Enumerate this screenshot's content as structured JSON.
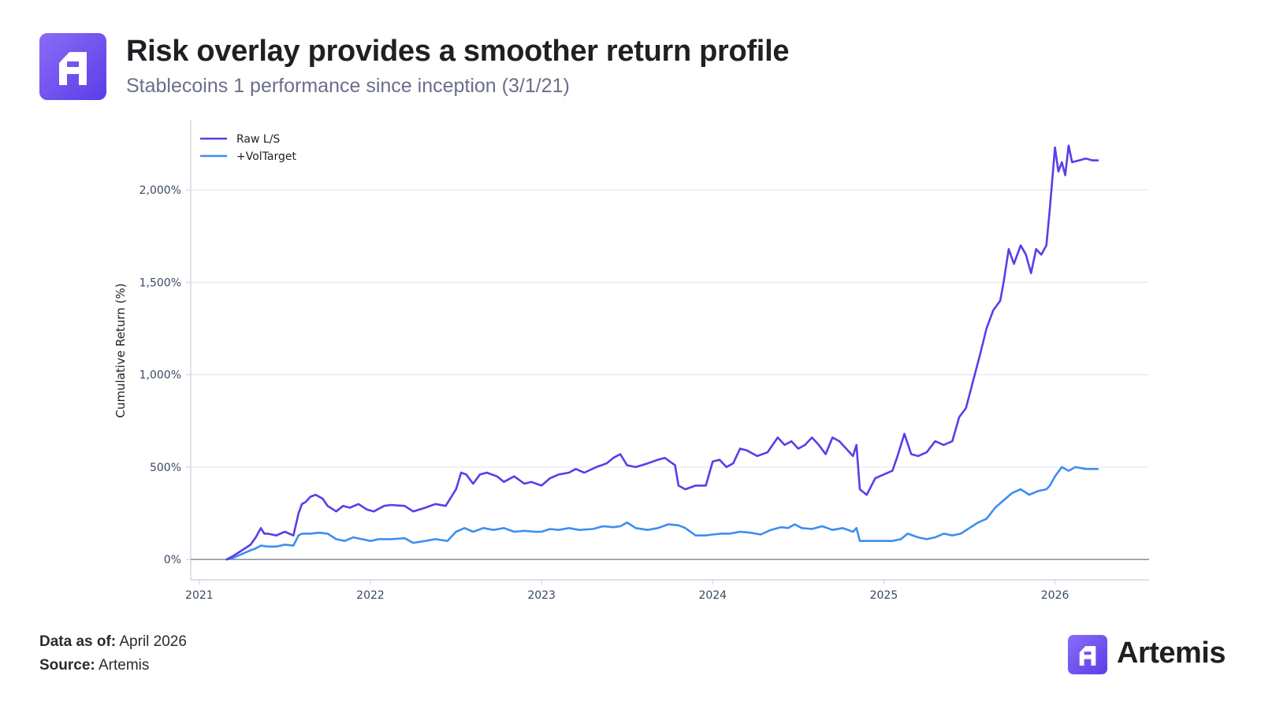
{
  "header": {
    "logo_icon": "artemis-logo-icon",
    "title": "Risk overlay provides a smoother return profile",
    "subtitle": "Stablecoins 1 performance since inception (3/1/21)"
  },
  "footer": {
    "data_as_of_label": "Data as of:",
    "data_as_of_value": "April 2026",
    "source_label": "Source:",
    "source_value": "Artemis"
  },
  "brand": {
    "icon": "artemis-logo-icon",
    "name": "Artemis"
  },
  "colors": {
    "raw": "#5b3de8",
    "voltarget": "#3d8ef0",
    "grid": "#e3e8f0",
    "axis": "#c8d2e0",
    "zero_line": "#7a8394",
    "tick_text": "#3a4a63"
  },
  "chart_data": {
    "type": "line",
    "title": "",
    "xlabel": "",
    "ylabel": "Cumulative Return (%)",
    "xlim": [
      2020.95,
      2026.55
    ],
    "ylim": [
      -110,
      2380
    ],
    "xticks": [
      2021,
      2022,
      2023,
      2024,
      2025,
      2026
    ],
    "xtick_labels": [
      "2021",
      "2022",
      "2023",
      "2024",
      "2025",
      "2026"
    ],
    "yticks": [
      0,
      500,
      1000,
      1500,
      2000
    ],
    "ytick_labels": [
      "0%",
      "500%",
      "1,000%",
      "1,500%",
      "2,000%"
    ],
    "grid": "horizontal",
    "legend_position": "top-left",
    "series": [
      {
        "name": "Raw L/S",
        "x": [
          2021.16,
          2021.2,
          2021.25,
          2021.3,
          2021.33,
          2021.36,
          2021.38,
          2021.4,
          2021.45,
          2021.5,
          2021.55,
          2021.58,
          2021.6,
          2021.62,
          2021.65,
          2021.68,
          2021.72,
          2021.75,
          2021.8,
          2021.84,
          2021.88,
          2021.93,
          2021.98,
          2022.02,
          2022.08,
          2022.12,
          2022.2,
          2022.25,
          2022.32,
          2022.38,
          2022.44,
          2022.5,
          2022.53,
          2022.56,
          2022.6,
          2022.64,
          2022.68,
          2022.74,
          2022.78,
          2022.84,
          2022.9,
          2022.94,
          2023.0,
          2023.05,
          2023.1,
          2023.16,
          2023.2,
          2023.25,
          2023.32,
          2023.38,
          2023.42,
          2023.46,
          2023.5,
          2023.55,
          2023.62,
          2023.68,
          2023.72,
          2023.78,
          2023.8,
          2023.84,
          2023.9,
          2023.96,
          2024.0,
          2024.04,
          2024.08,
          2024.12,
          2024.16,
          2024.2,
          2024.26,
          2024.32,
          2024.38,
          2024.42,
          2024.46,
          2024.5,
          2024.54,
          2024.58,
          2024.62,
          2024.66,
          2024.7,
          2024.74,
          2024.78,
          2024.82,
          2024.84,
          2024.86,
          2024.9,
          2024.95,
          2025.0,
          2025.05,
          2025.08,
          2025.12,
          2025.16,
          2025.2,
          2025.25,
          2025.3,
          2025.35,
          2025.4,
          2025.44,
          2025.48,
          2025.52,
          2025.56,
          2025.6,
          2025.64,
          2025.68,
          2025.7,
          2025.73,
          2025.76,
          2025.8,
          2025.83,
          2025.86,
          2025.89,
          2025.92,
          2025.95,
          2025.97,
          2026.0,
          2026.02,
          2026.04,
          2026.06,
          2026.08,
          2026.1,
          2026.14,
          2026.18,
          2026.22,
          2026.25
        ],
        "values": [
          0,
          20,
          50,
          80,
          120,
          170,
          140,
          140,
          130,
          150,
          130,
          250,
          300,
          310,
          340,
          350,
          330,
          290,
          260,
          290,
          280,
          300,
          270,
          260,
          290,
          295,
          290,
          260,
          280,
          300,
          290,
          380,
          470,
          460,
          410,
          460,
          470,
          450,
          420,
          450,
          410,
          420,
          400,
          440,
          460,
          470,
          490,
          470,
          500,
          520,
          550,
          570,
          510,
          500,
          520,
          540,
          550,
          510,
          400,
          380,
          400,
          400,
          530,
          540,
          500,
          520,
          600,
          590,
          560,
          580,
          660,
          620,
          640,
          600,
          620,
          660,
          620,
          570,
          660,
          640,
          600,
          560,
          620,
          380,
          350,
          440,
          460,
          480,
          560,
          680,
          570,
          560,
          580,
          640,
          620,
          640,
          770,
          820,
          960,
          1100,
          1250,
          1350,
          1400,
          1500,
          1680,
          1600,
          1700,
          1650,
          1550,
          1680,
          1650,
          1700,
          1900,
          2230,
          2100,
          2150,
          2080,
          2240,
          2150,
          2160,
          2170,
          2160,
          2160
        ]
      },
      {
        "name": "+VolTarget",
        "x": [
          2021.16,
          2021.2,
          2021.25,
          2021.3,
          2021.33,
          2021.36,
          2021.4,
          2021.45,
          2021.5,
          2021.55,
          2021.58,
          2021.6,
          2021.65,
          2021.7,
          2021.75,
          2021.8,
          2021.85,
          2021.9,
          2021.95,
          2022.0,
          2022.05,
          2022.12,
          2022.2,
          2022.25,
          2022.32,
          2022.38,
          2022.45,
          2022.5,
          2022.55,
          2022.6,
          2022.66,
          2022.72,
          2022.78,
          2022.84,
          2022.9,
          2022.96,
          2023.0,
          2023.05,
          2023.1,
          2023.16,
          2023.22,
          2023.3,
          2023.36,
          2023.42,
          2023.46,
          2023.5,
          2023.55,
          2023.62,
          2023.68,
          2023.74,
          2023.8,
          2023.84,
          2023.9,
          2023.96,
          2024.0,
          2024.05,
          2024.1,
          2024.16,
          2024.22,
          2024.28,
          2024.34,
          2024.4,
          2024.44,
          2024.48,
          2024.52,
          2024.58,
          2024.64,
          2024.7,
          2024.76,
          2024.82,
          2024.84,
          2024.86,
          2024.9,
          2024.95,
          2025.0,
          2025.05,
          2025.1,
          2025.14,
          2025.2,
          2025.25,
          2025.3,
          2025.35,
          2025.4,
          2025.45,
          2025.5,
          2025.55,
          2025.6,
          2025.65,
          2025.7,
          2025.75,
          2025.8,
          2025.85,
          2025.9,
          2025.95,
          2025.97,
          2026.0,
          2026.04,
          2026.08,
          2026.12,
          2026.18,
          2026.22,
          2026.25
        ],
        "values": [
          0,
          10,
          30,
          50,
          60,
          75,
          70,
          70,
          80,
          75,
          130,
          140,
          140,
          145,
          140,
          110,
          100,
          120,
          110,
          100,
          110,
          110,
          115,
          90,
          100,
          110,
          100,
          150,
          170,
          150,
          170,
          160,
          170,
          150,
          155,
          150,
          150,
          165,
          160,
          170,
          160,
          165,
          180,
          175,
          180,
          200,
          170,
          160,
          170,
          190,
          185,
          170,
          130,
          130,
          135,
          140,
          140,
          150,
          145,
          135,
          160,
          175,
          170,
          190,
          170,
          165,
          180,
          160,
          170,
          150,
          170,
          100,
          100,
          100,
          100,
          100,
          110,
          140,
          120,
          110,
          120,
          140,
          130,
          140,
          170,
          200,
          220,
          280,
          320,
          360,
          380,
          350,
          370,
          380,
          400,
          450,
          500,
          480,
          500,
          490,
          490,
          490
        ]
      }
    ]
  }
}
